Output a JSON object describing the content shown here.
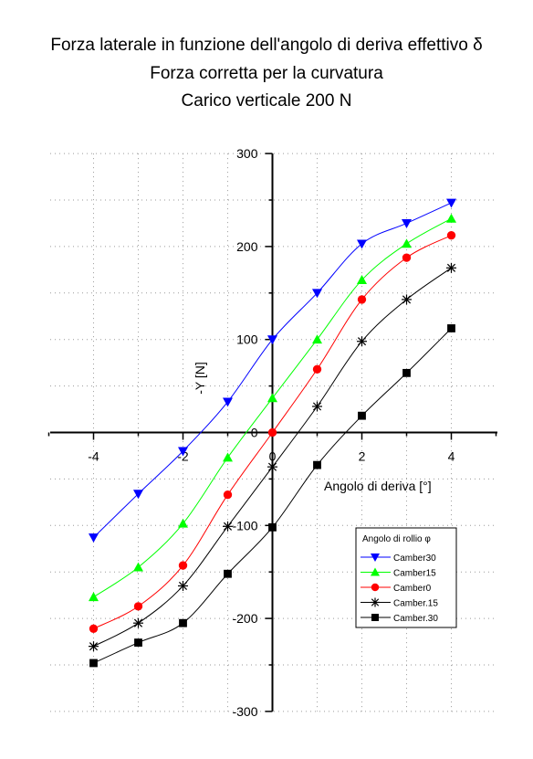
{
  "chart_data": {
    "type": "line",
    "title": "Forza laterale in funzione dell'angolo di deriva effettivo δ",
    "subtitle_lines": [
      "Forza corretta per la curvatura",
      "Carico verticale 200 N"
    ],
    "xlabel": "Angolo di deriva [°]",
    "ylabel": "-Y [N]",
    "xlim": [
      -5,
      5
    ],
    "ylim": [
      -300,
      300
    ],
    "xticks": [
      -4,
      -2,
      0,
      2,
      4
    ],
    "yticks": [
      -300,
      -200,
      -100,
      0,
      100,
      200,
      300
    ],
    "x_tick_labels": [
      "-4",
      "-2",
      "0",
      "2",
      "4"
    ],
    "y_tick_labels": [
      "-300",
      "-200",
      "-100",
      "0",
      "100",
      "200",
      "300"
    ],
    "grid": true,
    "legend_title": "Angolo di rollio φ",
    "legend_position": "lower-right",
    "x": [
      -4,
      -3,
      -2,
      -1,
      0,
      1,
      2,
      3,
      4
    ],
    "series": [
      {
        "name": "Camber30",
        "color": "#0000ff",
        "marker": "triangle-down",
        "values": [
          -113,
          -66,
          -20,
          33,
          100,
          150,
          203,
          225,
          247
        ]
      },
      {
        "name": "Camber15",
        "color": "#00ff00",
        "marker": "triangle-up",
        "values": [
          -177,
          -145,
          -98,
          -27,
          37,
          100,
          164,
          203,
          230
        ]
      },
      {
        "name": "Camber0",
        "color": "#ff0000",
        "marker": "circle",
        "values": [
          -211,
          -187,
          -143,
          -67,
          0,
          68,
          143,
          188,
          212
        ]
      },
      {
        "name": "Camber.15",
        "color": "#000000",
        "marker": "star",
        "values": [
          -230,
          -205,
          -165,
          -101,
          -37,
          28,
          98,
          143,
          177
        ]
      },
      {
        "name": "Camber.30",
        "color": "#000000",
        "marker": "square",
        "values": [
          -248,
          -226,
          -205,
          -152,
          -102,
          -35,
          18,
          64,
          112
        ]
      }
    ]
  }
}
